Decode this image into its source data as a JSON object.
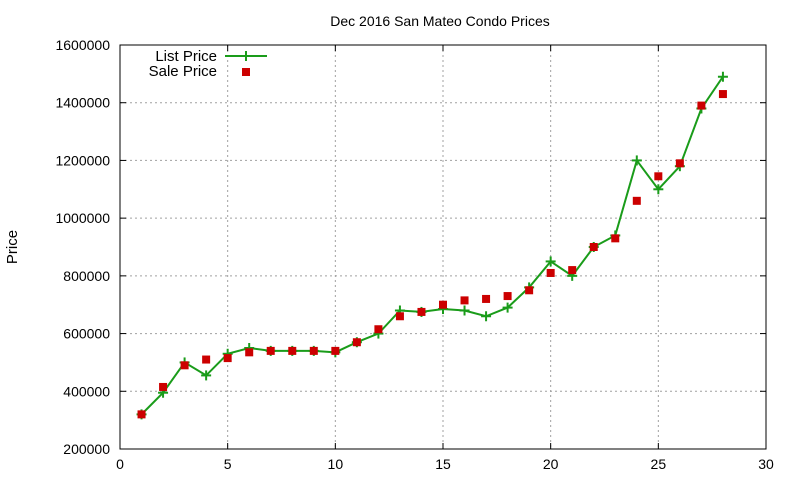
{
  "chart_data": {
    "type": "line",
    "title": "Dec 2016 San Mateo Condo Prices",
    "xlabel": "",
    "ylabel": "Price",
    "xlim": [
      0,
      30
    ],
    "ylim": [
      200000,
      1600000
    ],
    "xticks": [
      0,
      5,
      10,
      15,
      20,
      25,
      30
    ],
    "yticks": [
      200000,
      400000,
      600000,
      800000,
      1000000,
      1200000,
      1400000,
      1600000
    ],
    "xtick_labels": [
      "0",
      "5",
      "10",
      "15",
      "20",
      "25",
      "30"
    ],
    "ytick_labels": [
      "200000",
      "400000",
      "600000",
      "800000",
      "1000000",
      "1200000",
      "1400000",
      "1600000"
    ],
    "grid": true,
    "legend_position": "top-left",
    "x": [
      1,
      2,
      3,
      4,
      5,
      6,
      7,
      8,
      9,
      10,
      11,
      12,
      13,
      14,
      15,
      16,
      17,
      18,
      19,
      20,
      21,
      22,
      23,
      24,
      25,
      26,
      27,
      28
    ],
    "series": [
      {
        "name": "List Price",
        "style": "line+cross",
        "color": "#1a9c1a",
        "values": [
          320000,
          395000,
          500000,
          455000,
          530000,
          550000,
          540000,
          540000,
          540000,
          535000,
          570000,
          600000,
          680000,
          675000,
          685000,
          680000,
          660000,
          690000,
          760000,
          850000,
          800000,
          900000,
          940000,
          1200000,
          1100000,
          1180000,
          1380000,
          1490000
        ]
      },
      {
        "name": "Sale Price",
        "style": "square",
        "color": "#cc0000",
        "values": [
          320000,
          415000,
          490000,
          510000,
          515000,
          535000,
          540000,
          540000,
          540000,
          540000,
          570000,
          615000,
          660000,
          675000,
          700000,
          715000,
          720000,
          730000,
          750000,
          810000,
          820000,
          900000,
          930000,
          1060000,
          1145000,
          1190000,
          1390000,
          1430000
        ]
      }
    ]
  }
}
